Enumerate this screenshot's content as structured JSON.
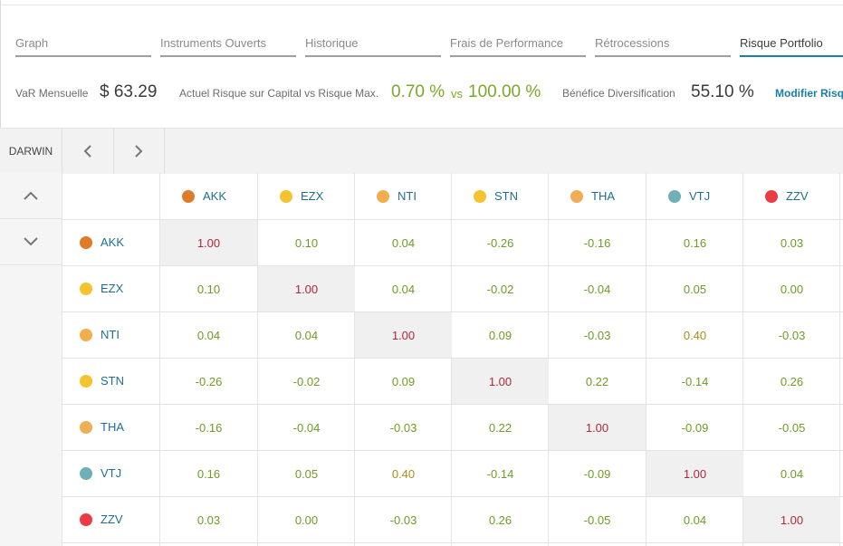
{
  "tabs": [
    {
      "label": "Graph",
      "active": false
    },
    {
      "label": "Instruments Ouverts",
      "active": false
    },
    {
      "label": "Historique",
      "active": false
    },
    {
      "label": "Frais de Performance",
      "active": false
    },
    {
      "label": "Rétrocessions",
      "active": false
    },
    {
      "label": "Risque Portfolio",
      "active": true
    }
  ],
  "stats": {
    "var_label": "VaR Mensuelle",
    "var_value": "$ 63.29",
    "risk_label": "Actuel Risque sur Capital vs Risque Max.",
    "risk_current": "0.70 %",
    "risk_vs": "vs",
    "risk_max": "100.00 %",
    "div_label": "Bénéfice Diversification",
    "div_value": "55.10 %",
    "modify_link": "Modifier Risq"
  },
  "toolbar": {
    "darwin_label": "DARWIN",
    "prev_icon": "chevron-left-icon",
    "next_icon": "chevron-right-icon"
  },
  "side": {
    "up_icon": "chevron-up-icon",
    "down_icon": "chevron-down-icon"
  },
  "colors": {
    "AKK": "#e07b2a",
    "EZX": "#f5c330",
    "NTI": "#f0ae4e",
    "STN": "#f5c330",
    "THA": "#efae56",
    "VTJ": "#6fb0b8",
    "ZZV": "#ec3b43",
    "accent": "#1a7fa8",
    "positive": "#7aa82a",
    "diagonal": "#b0263a"
  },
  "instruments": [
    "AKK",
    "EZX",
    "NTI",
    "STN",
    "THA",
    "VTJ",
    "ZZV"
  ],
  "matrix": [
    [
      "1.00",
      "0.10",
      "0.04",
      "-0.26",
      "-0.16",
      "0.16",
      "0.03"
    ],
    [
      "0.10",
      "1.00",
      "0.04",
      "-0.02",
      "-0.04",
      "0.05",
      "0.00"
    ],
    [
      "0.04",
      "0.04",
      "1.00",
      "0.09",
      "-0.03",
      "0.40",
      "-0.03"
    ],
    [
      "-0.26",
      "-0.02",
      "0.09",
      "1.00",
      "0.22",
      "-0.14",
      "0.26"
    ],
    [
      "-0.16",
      "-0.04",
      "-0.03",
      "0.22",
      "1.00",
      "-0.09",
      "-0.05"
    ],
    [
      "0.16",
      "0.05",
      "0.40",
      "-0.14",
      "-0.09",
      "1.00",
      "0.04"
    ],
    [
      "0.03",
      "0.00",
      "-0.03",
      "0.26",
      "-0.05",
      "0.04",
      "1.00"
    ]
  ]
}
